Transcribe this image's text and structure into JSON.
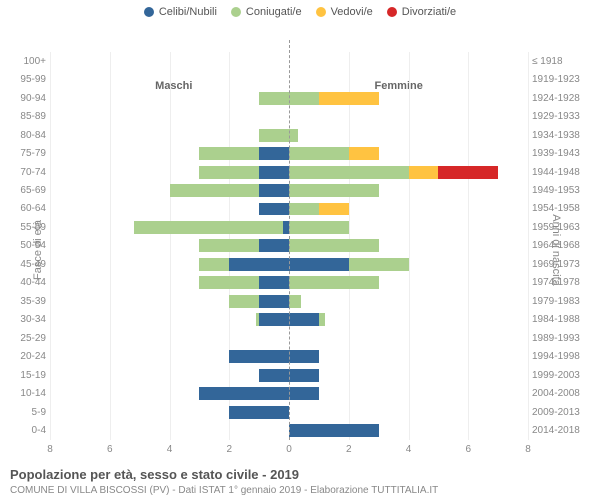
{
  "chart": {
    "type": "population-pyramid",
    "legend": [
      {
        "label": "Celibi/Nubili",
        "color": "#336699"
      },
      {
        "label": "Coniugati/e",
        "color": "#abd08e"
      },
      {
        "label": "Vedovi/e",
        "color": "#ffc341"
      },
      {
        "label": "Divorziati/e",
        "color": "#d62728"
      }
    ],
    "left_header": "Maschi",
    "right_header": "Femmine",
    "y_axis_left_title": "Fasce di età",
    "y_axis_right_title": "Anni di nascita",
    "x_max": 8,
    "x_tick_step": 2,
    "background_color": "#ffffff",
    "grid_color": "#eeeeee",
    "axis_text_color": "#888888",
    "label_fontsize": 10,
    "rows": [
      {
        "age": "100+",
        "birth": "≤ 1918",
        "m": [
          0,
          0,
          0,
          0
        ],
        "f": [
          0,
          0,
          0,
          0
        ]
      },
      {
        "age": "95-99",
        "birth": "1919-1923",
        "m": [
          0,
          0,
          0,
          0
        ],
        "f": [
          0,
          0,
          0,
          0
        ]
      },
      {
        "age": "90-94",
        "birth": "1924-1928",
        "m": [
          0,
          1,
          0,
          0
        ],
        "f": [
          0,
          1,
          2,
          0
        ]
      },
      {
        "age": "85-89",
        "birth": "1929-1933",
        "m": [
          0,
          0,
          0,
          0
        ],
        "f": [
          0,
          0,
          0,
          0
        ]
      },
      {
        "age": "80-84",
        "birth": "1934-1938",
        "m": [
          0,
          1,
          0,
          0
        ],
        "f": [
          0,
          0.3,
          0,
          0
        ]
      },
      {
        "age": "75-79",
        "birth": "1939-1943",
        "m": [
          1,
          2,
          0,
          0
        ],
        "f": [
          0,
          2,
          1,
          0
        ]
      },
      {
        "age": "70-74",
        "birth": "1944-1948",
        "m": [
          1,
          2,
          0,
          0
        ],
        "f": [
          0,
          4,
          1,
          2
        ]
      },
      {
        "age": "65-69",
        "birth": "1949-1953",
        "m": [
          1,
          3,
          0,
          0
        ],
        "f": [
          0,
          3,
          0,
          0
        ]
      },
      {
        "age": "60-64",
        "birth": "1954-1958",
        "m": [
          1,
          0,
          0,
          0
        ],
        "f": [
          0,
          1,
          1,
          0
        ]
      },
      {
        "age": "55-59",
        "birth": "1959-1963",
        "m": [
          0.2,
          5,
          0,
          0
        ],
        "f": [
          0,
          2,
          0,
          0
        ]
      },
      {
        "age": "50-54",
        "birth": "1964-1968",
        "m": [
          1,
          2,
          0,
          0
        ],
        "f": [
          0,
          3,
          0,
          0
        ]
      },
      {
        "age": "45-49",
        "birth": "1969-1973",
        "m": [
          2,
          1,
          0,
          0
        ],
        "f": [
          2,
          2,
          0,
          0
        ]
      },
      {
        "age": "40-44",
        "birth": "1974-1978",
        "m": [
          1,
          2,
          0,
          0
        ],
        "f": [
          0,
          3,
          0,
          0
        ]
      },
      {
        "age": "35-39",
        "birth": "1979-1983",
        "m": [
          1,
          1,
          0,
          0
        ],
        "f": [
          0,
          0.4,
          0,
          0
        ]
      },
      {
        "age": "30-34",
        "birth": "1984-1988",
        "m": [
          1,
          0.1,
          0,
          0
        ],
        "f": [
          1,
          0.2,
          0,
          0
        ]
      },
      {
        "age": "25-29",
        "birth": "1989-1993",
        "m": [
          0,
          0,
          0,
          0
        ],
        "f": [
          0,
          0,
          0,
          0
        ]
      },
      {
        "age": "20-24",
        "birth": "1994-1998",
        "m": [
          2,
          0,
          0,
          0
        ],
        "f": [
          1,
          0,
          0,
          0
        ]
      },
      {
        "age": "15-19",
        "birth": "1999-2003",
        "m": [
          1,
          0,
          0,
          0
        ],
        "f": [
          1,
          0,
          0,
          0
        ]
      },
      {
        "age": "10-14",
        "birth": "2004-2008",
        "m": [
          3,
          0,
          0,
          0
        ],
        "f": [
          1,
          0,
          0,
          0
        ]
      },
      {
        "age": "5-9",
        "birth": "2009-2013",
        "m": [
          2,
          0,
          0,
          0
        ],
        "f": [
          0,
          0,
          0,
          0
        ]
      },
      {
        "age": "0-4",
        "birth": "2014-2018",
        "m": [
          0,
          0,
          0,
          0
        ],
        "f": [
          3,
          0,
          0,
          0
        ]
      }
    ]
  },
  "caption": "Popolazione per età, sesso e stato civile - 2019",
  "subcaption": "COMUNE DI VILLA BISCOSSI (PV) - Dati ISTAT 1° gennaio 2019 - Elaborazione TUTTITALIA.IT"
}
